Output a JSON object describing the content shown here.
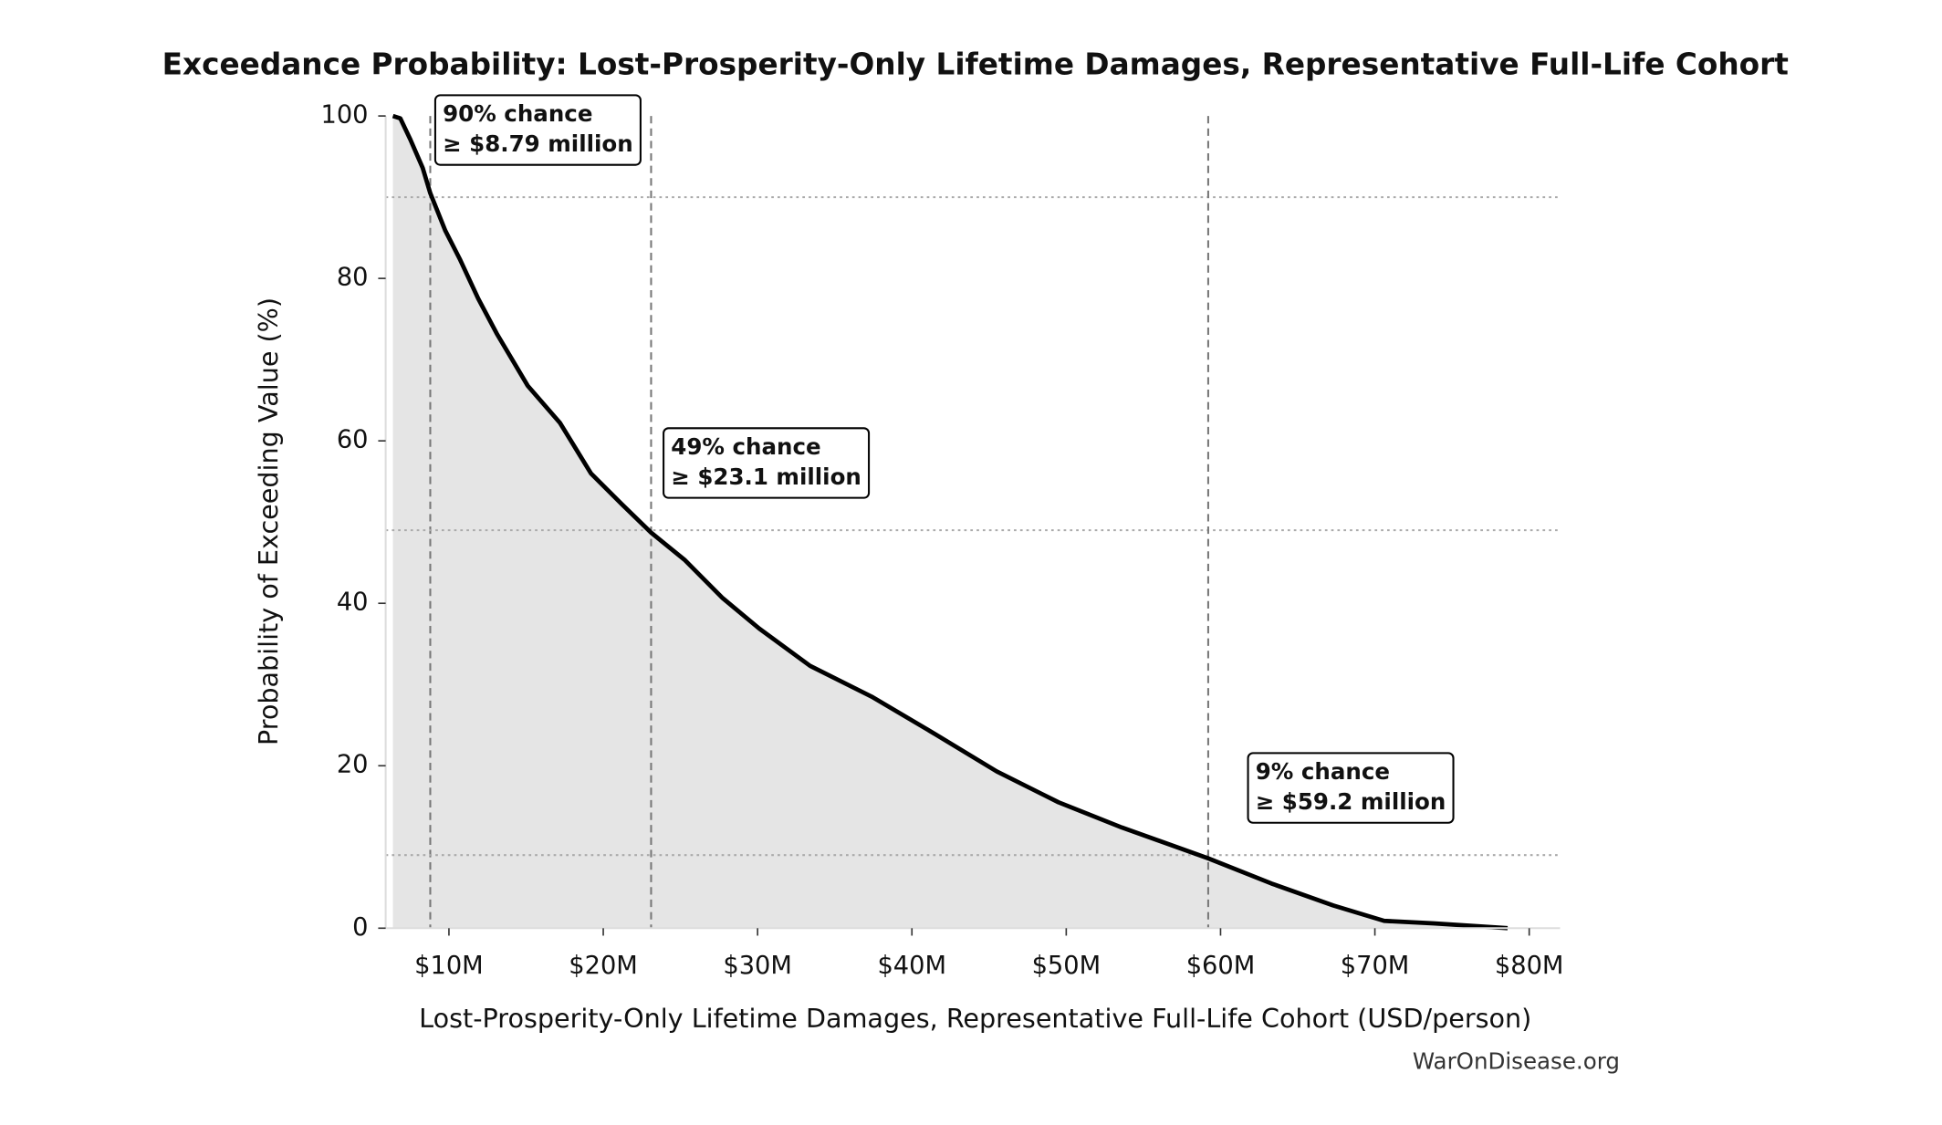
{
  "chart_data": {
    "type": "line",
    "title": "Exceedance Probability: Lost-Prosperity-Only Lifetime Damages, Representative Full-Life Cohort",
    "xlabel": "Lost-Prosperity-Only Lifetime Damages, Representative Full-Life Cohort (USD/person)",
    "ylabel": "Probability of Exceeding Value (%)",
    "source": "WarOnDisease.org",
    "xlim": [
      5900000,
      82000000
    ],
    "ylim": [
      0,
      100
    ],
    "xticks": [
      {
        "value": 10000000,
        "label": "$10M"
      },
      {
        "value": 20000000,
        "label": "$20M"
      },
      {
        "value": 30000000,
        "label": "$30M"
      },
      {
        "value": 40000000,
        "label": "$40M"
      },
      {
        "value": 50000000,
        "label": "$50M"
      },
      {
        "value": 60000000,
        "label": "$60M"
      },
      {
        "value": 70000000,
        "label": "$70M"
      },
      {
        "value": 80000000,
        "label": "$80M"
      }
    ],
    "yticks": [
      0,
      20,
      40,
      60,
      80,
      100
    ],
    "color": "#000000",
    "fill_color": "#e5e5e5",
    "series": [
      {
        "name": "Exceedance probability",
        "color": "#000000",
        "x": [
          6370000,
          6850000,
          7500000,
          8300000,
          8790000,
          9760000,
          10700000,
          11900000,
          13100000,
          15100000,
          17200000,
          19200000,
          21200000,
          23100000,
          25300000,
          27700000,
          30100000,
          33400000,
          37400000,
          41500000,
          45500000,
          49500000,
          53600000,
          59200000,
          63300000,
          67300000,
          70600000,
          73800000,
          78600000
        ],
        "values": [
          100,
          99.7,
          97.1,
          93.6,
          90.5,
          85.9,
          82.4,
          77.5,
          73.2,
          66.8,
          62.2,
          56.0,
          52.2,
          48.7,
          45.3,
          40.7,
          36.9,
          32.3,
          28.5,
          23.9,
          19.3,
          15.5,
          12.4,
          8.6,
          5.5,
          2.8,
          0.9,
          0.6,
          0
        ]
      }
    ],
    "annotations": [
      {
        "x": 8790000,
        "probability": 90,
        "line1": "90% chance",
        "line2": "≥ $8.79 million"
      },
      {
        "x": 23100000,
        "probability": 49,
        "line1": "49% chance",
        "line2": "≥ $23.1 million"
      },
      {
        "x": 59200000,
        "probability": 9,
        "line1": "9% chance",
        "line2": "≥ $59.2 million"
      }
    ]
  }
}
